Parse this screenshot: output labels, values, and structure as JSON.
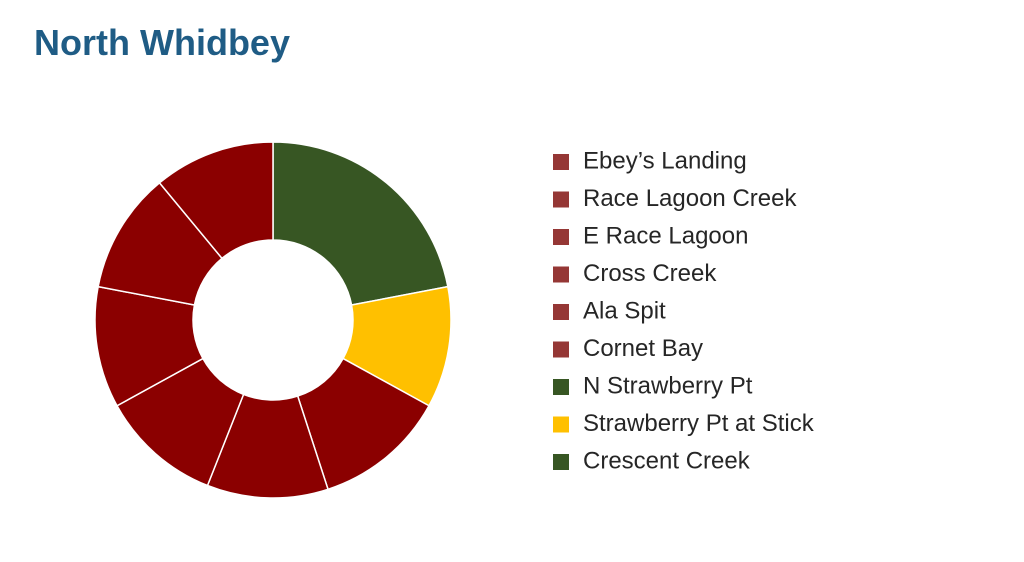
{
  "chart_data": {
    "type": "donut",
    "title": "North Whidbey",
    "categories": [
      "Ebey’s Landing",
      "Race Lagoon Creek",
      "E Race Lagoon",
      "Cross Creek",
      "Ala Spit",
      "Cornet Bay",
      "N Strawberry Pt",
      "Strawberry Pt at Stick",
      "Crescent Creek"
    ],
    "values": [
      11,
      11,
      11,
      11,
      11,
      12,
      0,
      11,
      22
    ],
    "colors": [
      "#8b0000",
      "#8b0000",
      "#8b0000",
      "#8b0000",
      "#8b0000",
      "#8b0000",
      "#375623",
      "#ffc000",
      "#375623"
    ],
    "legend_colors": [
      "#953735",
      "#953735",
      "#953735",
      "#953735",
      "#953735",
      "#953735",
      "#375623",
      "#ffc000",
      "#375623"
    ]
  }
}
